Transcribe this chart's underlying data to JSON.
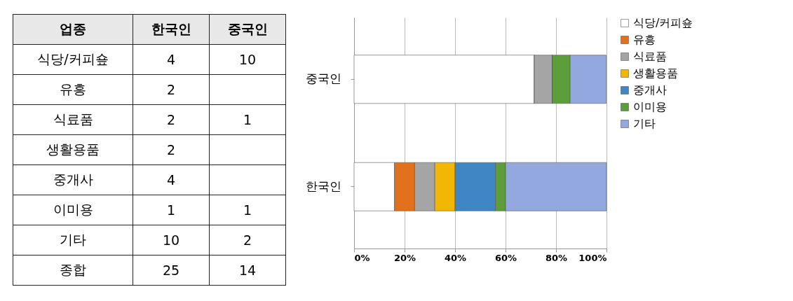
{
  "chart_data": [
    {
      "type": "other",
      "ylabel": "업종",
      "categories": [
        "한국인",
        "중국인"
      ],
      "annotations": [
        "식당/커피숖",
        "4",
        "10",
        "유흥",
        "2",
        null,
        "식료품",
        "2",
        "1",
        "생활용품",
        "2",
        null,
        "중개사",
        "4",
        null,
        "이미용",
        "1",
        "1",
        "기타",
        "10",
        "2",
        "종합",
        "25",
        "14"
      ]
    },
    {
      "type": "bar",
      "orientation": "horizontal",
      "stacked": true,
      "categories": [
        "중국인",
        "한국인"
      ],
      "series": [
        {
          "name": "식당/커피숖",
          "color": "#ffffff",
          "values": [
            71.4,
            16
          ]
        },
        {
          "name": "유흥",
          "color": "#e2711d",
          "values": [
            0,
            8
          ]
        },
        {
          "name": "식료품",
          "color": "#a5a5a5",
          "values": [
            7.1,
            8
          ]
        },
        {
          "name": "생활용품",
          "color": "#f2b705",
          "values": [
            0,
            8
          ]
        },
        {
          "name": "중개사",
          "color": "#3f86c4",
          "values": [
            0,
            16
          ]
        },
        {
          "name": "이미용",
          "color": "#5b9e3a",
          "values": [
            7.1,
            4
          ]
        },
        {
          "name": "기타",
          "color": "#93a8de",
          "values": [
            14.3,
            40
          ]
        }
      ],
      "xlim": [
        0,
        100
      ],
      "xticks": [
        {
          "value": 0,
          "label": "0%"
        },
        {
          "value": 20,
          "label": "20%"
        },
        {
          "value": 40,
          "label": "40%"
        },
        {
          "value": 60,
          "label": "60%"
        },
        {
          "value": 80,
          "label": "80%"
        },
        {
          "value": 100,
          "label": "100%"
        }
      ],
      "grid": "x",
      "legend": "right"
    }
  ]
}
